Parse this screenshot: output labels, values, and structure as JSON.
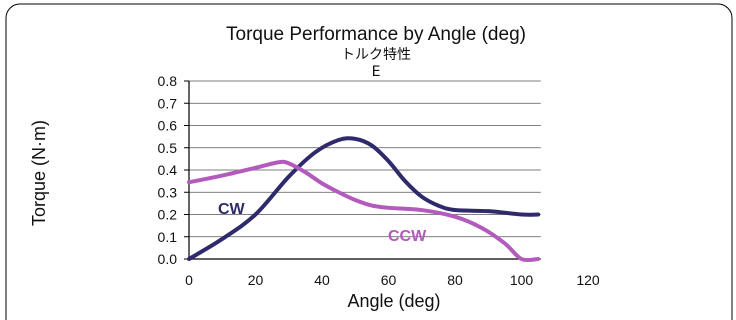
{
  "chart_data": {
    "type": "line",
    "title": "Torque Performance by Angle (deg)",
    "subtitle_lines": [
      "トルク特性",
      "E"
    ],
    "xlabel": "Angle (deg)",
    "ylabel": "Torque (N·m)",
    "xlim": [
      0,
      120
    ],
    "ylim": [
      0,
      0.8
    ],
    "xticks": [
      "0",
      "20",
      "40",
      "60",
      "80",
      "100",
      "120"
    ],
    "yticks": [
      "0.0",
      "0.1",
      "0.2",
      "0.3",
      "0.4",
      "0.5",
      "0.6",
      "0.7",
      "0.8"
    ],
    "grid": true,
    "series": [
      {
        "name": "CW",
        "color": "#2e2a6b",
        "points": [
          [
            0,
            0.0
          ],
          [
            10,
            0.09
          ],
          [
            20,
            0.2
          ],
          [
            30,
            0.37
          ],
          [
            38,
            0.48
          ],
          [
            45,
            0.535
          ],
          [
            50,
            0.54
          ],
          [
            55,
            0.51
          ],
          [
            60,
            0.44
          ],
          [
            65,
            0.35
          ],
          [
            70,
            0.28
          ],
          [
            75,
            0.24
          ],
          [
            80,
            0.22
          ],
          [
            90,
            0.215
          ],
          [
            100,
            0.2
          ],
          [
            105,
            0.2
          ]
        ]
      },
      {
        "name": "CCW",
        "color": "#b35bbd",
        "points": [
          [
            0,
            0.345
          ],
          [
            10,
            0.375
          ],
          [
            20,
            0.41
          ],
          [
            27,
            0.435
          ],
          [
            30,
            0.43
          ],
          [
            35,
            0.39
          ],
          [
            40,
            0.34
          ],
          [
            45,
            0.3
          ],
          [
            50,
            0.265
          ],
          [
            55,
            0.24
          ],
          [
            60,
            0.23
          ],
          [
            70,
            0.22
          ],
          [
            80,
            0.19
          ],
          [
            88,
            0.14
          ],
          [
            95,
            0.07
          ],
          [
            100,
            0.0
          ],
          [
            105,
            0.0
          ]
        ]
      }
    ]
  }
}
